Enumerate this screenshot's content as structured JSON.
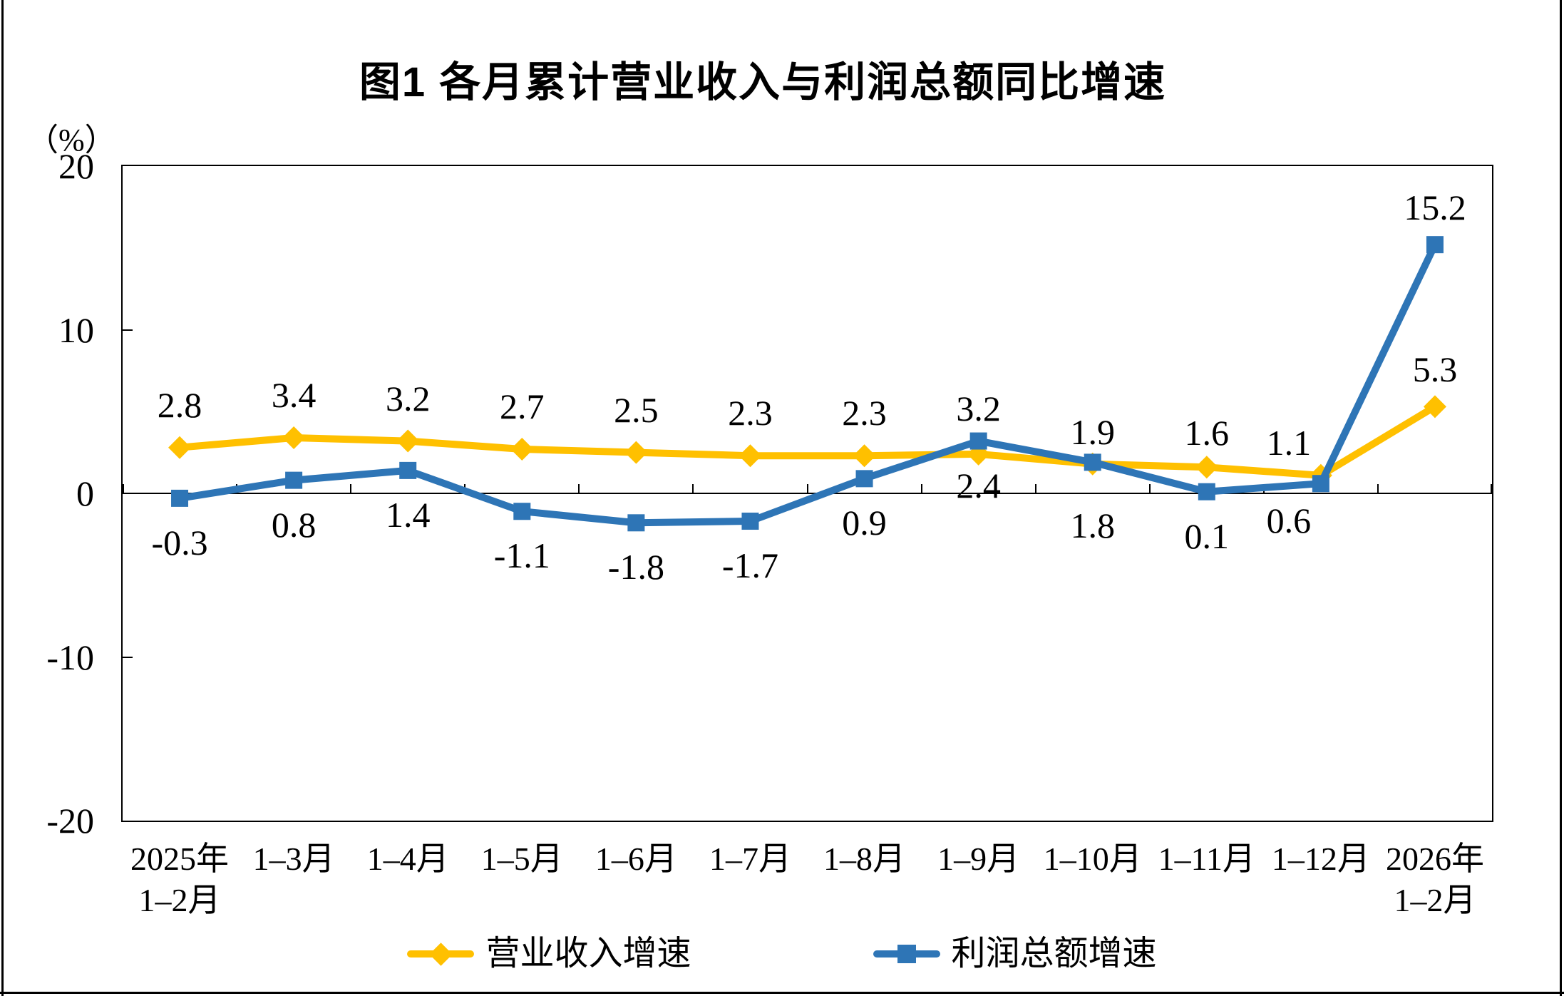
{
  "chart": {
    "title": "图1  各月累计营业收入与利润总额同比增速",
    "unit_label": "（%）"
  },
  "chart_data": {
    "type": "line",
    "title": "图1  各月累计营业收入与利润总额同比增速",
    "ylabel_unit": "（%）",
    "grid": false,
    "legend_position": "bottom",
    "y_axis": {
      "min": -20,
      "max": 20,
      "ticks": [
        20,
        10,
        0,
        -10,
        -20
      ],
      "unit": "（%）"
    },
    "categories": [
      {
        "line1": "2025年",
        "line2": "1–2月"
      },
      {
        "line1": "1–3月"
      },
      {
        "line1": "1–4月"
      },
      {
        "line1": "1–5月"
      },
      {
        "line1": "1–6月"
      },
      {
        "line1": "1–7月"
      },
      {
        "line1": "1–8月"
      },
      {
        "line1": "1–9月"
      },
      {
        "line1": "1–10月"
      },
      {
        "line1": "1–11月"
      },
      {
        "line1": "1–12月"
      },
      {
        "line1": "2026年",
        "line2": "1–2月"
      }
    ],
    "series": [
      {
        "name": "营业收入增速",
        "color": "#FFC000",
        "marker": "diamond",
        "values": [
          2.8,
          3.4,
          3.2,
          2.7,
          2.5,
          2.3,
          2.3,
          2.4,
          1.8,
          1.6,
          1.1,
          5.3
        ]
      },
      {
        "name": "利润总额增速",
        "color": "#2E75B6",
        "marker": "square",
        "values": [
          -0.3,
          0.8,
          1.4,
          -1.1,
          -1.8,
          -1.7,
          0.9,
          3.2,
          1.9,
          0.1,
          0.6,
          15.2
        ]
      }
    ]
  }
}
